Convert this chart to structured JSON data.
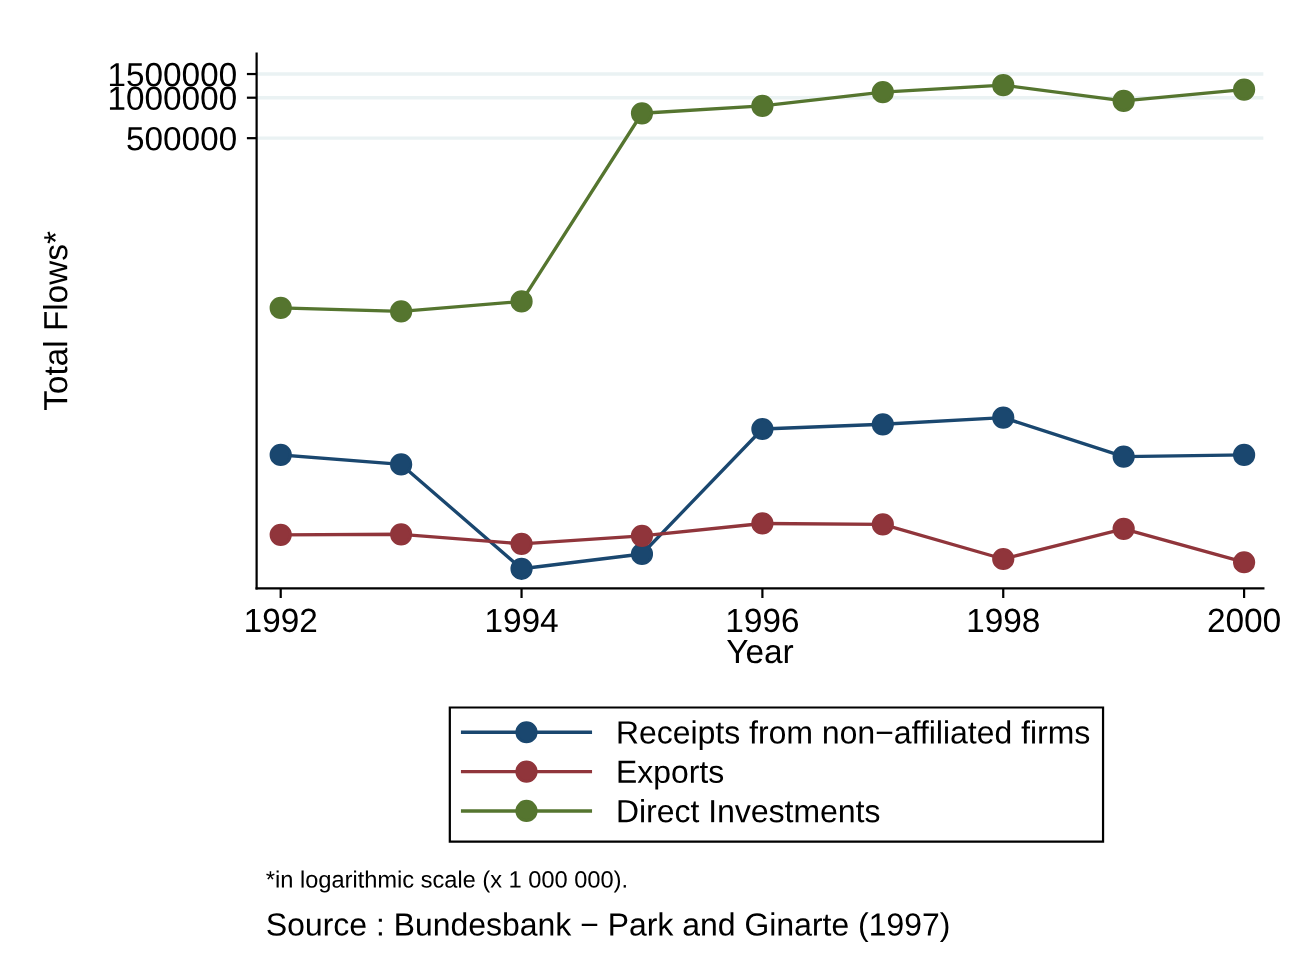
{
  "chart_data": {
    "type": "line",
    "xlabel": "Year",
    "ylabel": "Total Flows*",
    "x": [
      1992,
      1993,
      1994,
      1995,
      1996,
      1997,
      1998,
      1999,
      2000
    ],
    "series": [
      {
        "name": "Receipts from non−affiliated firms",
        "color": "#1a476f",
        "values": [
          2200,
          1870,
          313,
          403,
          3430,
          3720,
          4170,
          2140,
          2200
        ]
      },
      {
        "name": "Exports",
        "color": "#90353b",
        "values": [
          560,
          565,
          480,
          550,
          680,
          670,
          370,
          620,
          350
        ]
      },
      {
        "name": "Direct Investments",
        "color": "#55752f",
        "values": [
          27300,
          25700,
          30500,
          766000,
          869000,
          1100000,
          1240000,
          947000,
          1150000
        ]
      }
    ],
    "log": "y",
    "ylim": [
      224,
      2130000
    ],
    "yticks": [
      500000,
      1000000,
      1500000
    ],
    "xlim": [
      1991.8,
      2000.16
    ],
    "xticks": [
      1992,
      1994,
      1996,
      1998,
      2000
    ],
    "grid": "y",
    "legend": "bottom",
    "marker": "circle",
    "line_style": "solid",
    "annotations": [
      "*in logarithmic scale (x 1 000 000).",
      "Source : Bundesbank − Park and Ginarte (1997)"
    ]
  }
}
